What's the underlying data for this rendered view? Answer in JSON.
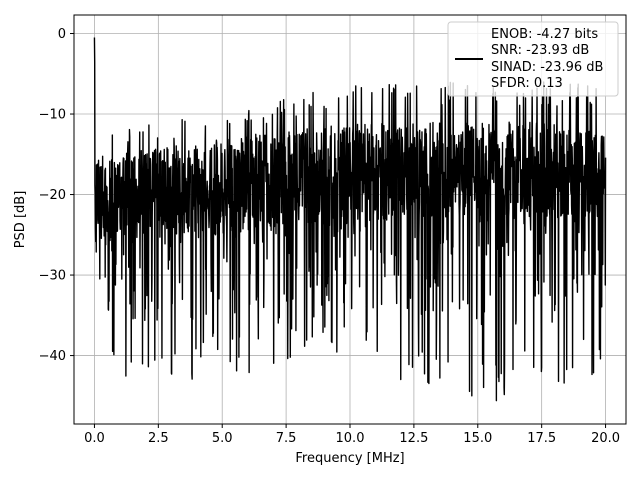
{
  "chart_data": {
    "type": "line",
    "title": "",
    "xlabel": "Frequency [MHz]",
    "ylabel": "PSD [dB]",
    "xlim": [
      -0.8,
      20.8
    ],
    "ylim": [
      -48.5,
      2.3
    ],
    "xticks": [
      0.0,
      2.5,
      5.0,
      7.5,
      10.0,
      12.5,
      15.0,
      17.5,
      20.0
    ],
    "xtick_labels": [
      "0.0",
      "2.5",
      "5.0",
      "7.5",
      "10.0",
      "12.5",
      "15.0",
      "17.5",
      "20.0"
    ],
    "yticks": [
      0,
      -10,
      -20,
      -30,
      -40
    ],
    "ytick_labels": [
      "0",
      "−10",
      "−20",
      "−30",
      "−40"
    ],
    "grid": true,
    "legend": {
      "placement": "upper-right",
      "entries": [
        "ENOB: -4.27 bits",
        "SNR: -23.93 dB",
        "SINAD: -23.96 dB",
        "SFDR: 0.13"
      ]
    },
    "series": [
      {
        "color": "#000000",
        "x_range": [
          0.0,
          20.0
        ],
        "num_points": 2000,
        "envelope": {
          "x": [
            0.0,
            0.05,
            0.1,
            0.15,
            0.25,
            0.5,
            1.0,
            2.5,
            5.0,
            7.5,
            10.0,
            12.5,
            15.0,
            17.5,
            20.0
          ],
          "upper": [
            -0.5,
            -2.5,
            -8.0,
            -10.0,
            -11.5,
            -12.0,
            -12.0,
            -11.0,
            -10.0,
            -8.0,
            -6.0,
            -6.0,
            -6.0,
            -6.0,
            -6.5
          ],
          "lower": [
            -25.0,
            -28.0,
            -32.0,
            -35.0,
            -38.0,
            -40.0,
            -43.0,
            -43.0,
            -43.0,
            -41.0,
            -41.0,
            -44.0,
            -46.0,
            -45.0,
            -43.0
          ],
          "core_high": [
            -10.0,
            -12.0,
            -14.0,
            -15.0,
            -15.0,
            -15.0,
            -15.0,
            -14.0,
            -13.0,
            -12.0,
            -11.0,
            -11.0,
            -11.0,
            -11.0,
            -12.0
          ],
          "core_low": [
            -24.0,
            -25.0,
            -26.0,
            -26.0,
            -26.0,
            -26.0,
            -25.0,
            -25.0,
            -25.0,
            -24.0,
            -24.0,
            -23.0,
            -23.0,
            -23.0,
            -23.0
          ]
        }
      }
    ]
  }
}
